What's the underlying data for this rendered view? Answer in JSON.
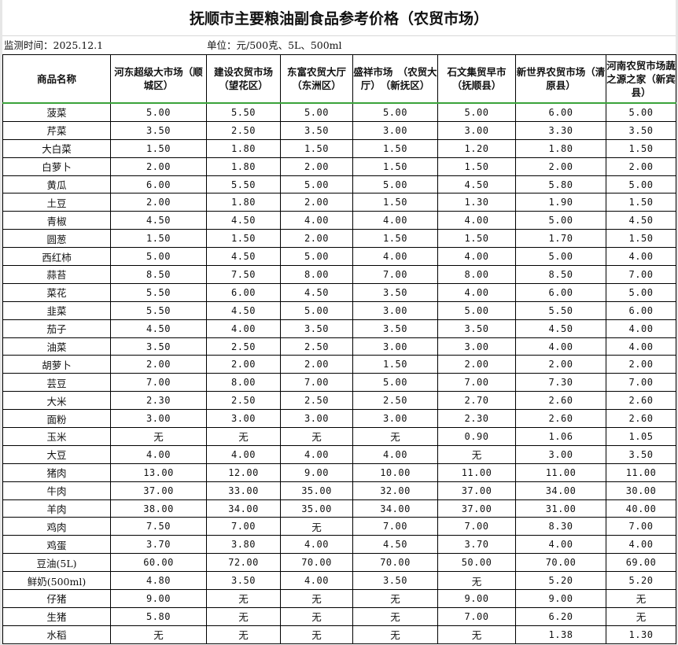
{
  "title": "抚顺市主要粮油副食品参考价格（农贸市场）",
  "monitor_time": "监测时间：2025.12.1",
  "unit": "单位：元/500克、5L、500ml",
  "columns": [
    "商品名称",
    "河东超级大市场（顺城区）",
    "建设农贸市场（望花区）",
    "东富农贸大厅（东洲区）",
    "盛祥市场　（农贸大厅）　（新抚区）",
    "石文集贸早市（抚顺县）",
    "新世界农贸市场（清原县）",
    "河南农贸市场蔬之源之家（新宾县）"
  ],
  "rows": [
    [
      "菠菜",
      "5.00",
      "5.50",
      "5.00",
      "5.00",
      "5.00",
      "6.00",
      "5.00"
    ],
    [
      "芹菜",
      "3.50",
      "2.50",
      "3.50",
      "3.00",
      "3.00",
      "3.30",
      "3.50"
    ],
    [
      "大白菜",
      "1.50",
      "1.80",
      "1.50",
      "1.50",
      "1.20",
      "1.80",
      "1.50"
    ],
    [
      "白萝卜",
      "2.00",
      "1.80",
      "2.00",
      "1.50",
      "1.50",
      "2.00",
      "2.00"
    ],
    [
      "黄瓜",
      "6.00",
      "5.50",
      "5.00",
      "5.00",
      "4.50",
      "5.80",
      "5.00"
    ],
    [
      "土豆",
      "2.00",
      "1.80",
      "2.00",
      "1.50",
      "1.30",
      "1.90",
      "1.50"
    ],
    [
      "青椒",
      "4.50",
      "4.50",
      "4.00",
      "4.00",
      "4.00",
      "5.00",
      "4.50"
    ],
    [
      "圆葱",
      "1.50",
      "1.50",
      "2.00",
      "1.50",
      "1.50",
      "1.70",
      "1.50"
    ],
    [
      "西红柿",
      "5.00",
      "4.50",
      "5.00",
      "4.00",
      "4.00",
      "5.00",
      "4.00"
    ],
    [
      "蒜苔",
      "8.50",
      "7.50",
      "8.00",
      "7.00",
      "8.00",
      "8.50",
      "7.00"
    ],
    [
      "菜花",
      "5.50",
      "6.00",
      "4.50",
      "3.50",
      "4.00",
      "6.00",
      "5.00"
    ],
    [
      "韭菜",
      "5.50",
      "4.50",
      "5.00",
      "3.00",
      "5.00",
      "5.50",
      "6.00"
    ],
    [
      "茄子",
      "4.50",
      "4.00",
      "3.50",
      "3.50",
      "3.50",
      "4.50",
      "4.00"
    ],
    [
      "油菜",
      "3.50",
      "2.50",
      "2.50",
      "3.00",
      "3.00",
      "4.00",
      "4.00"
    ],
    [
      "胡萝卜",
      "2.00",
      "2.00",
      "2.00",
      "1.50",
      "2.00",
      "2.00",
      "2.00"
    ],
    [
      "芸豆",
      "7.00",
      "8.00",
      "7.00",
      "5.00",
      "7.00",
      "7.30",
      "7.00"
    ],
    [
      "大米",
      "2.30",
      "2.50",
      "2.50",
      "2.50",
      "2.70",
      "2.60",
      "2.60"
    ],
    [
      "面粉",
      "3.00",
      "3.00",
      "3.00",
      "3.00",
      "2.30",
      "2.60",
      "2.60"
    ],
    [
      "玉米",
      "无",
      "无",
      "无",
      "无",
      "0.90",
      "1.06",
      "1.05"
    ],
    [
      "大豆",
      "4.00",
      "4.00",
      "4.00",
      "4.00",
      "无",
      "3.00",
      "3.50"
    ],
    [
      "猪肉",
      "13.00",
      "12.00",
      "9.00",
      "10.00",
      "11.00",
      "11.00",
      "11.00"
    ],
    [
      "牛肉",
      "37.00",
      "33.00",
      "35.00",
      "32.00",
      "37.00",
      "34.00",
      "30.00"
    ],
    [
      "羊肉",
      "38.00",
      "34.00",
      "35.00",
      "34.00",
      "37.00",
      "31.00",
      "40.00"
    ],
    [
      "鸡肉",
      "7.50",
      "7.00",
      "无",
      "7.00",
      "7.00",
      "8.30",
      "7.00"
    ],
    [
      "鸡蛋",
      "3.70",
      "3.80",
      "4.00",
      "4.50",
      "3.70",
      "4.00",
      "4.00"
    ],
    [
      "豆油(5L)",
      "60.00",
      "72.00",
      "70.00",
      "70.00",
      "50.00",
      "70.00",
      "69.00"
    ],
    [
      "鲜奶(500ml)",
      "4.80",
      "3.50",
      "4.00",
      "3.50",
      "无",
      "5.20",
      "5.20"
    ],
    [
      "仔猪",
      "9.00",
      "无",
      "无",
      "无",
      "9.00",
      "9.00",
      "无"
    ],
    [
      "生猪",
      "5.80",
      "无",
      "无",
      "无",
      "7.00",
      "6.20",
      "无"
    ],
    [
      "水稻",
      "无",
      "无",
      "无",
      "无",
      "无",
      "1.38",
      "1.30"
    ]
  ]
}
